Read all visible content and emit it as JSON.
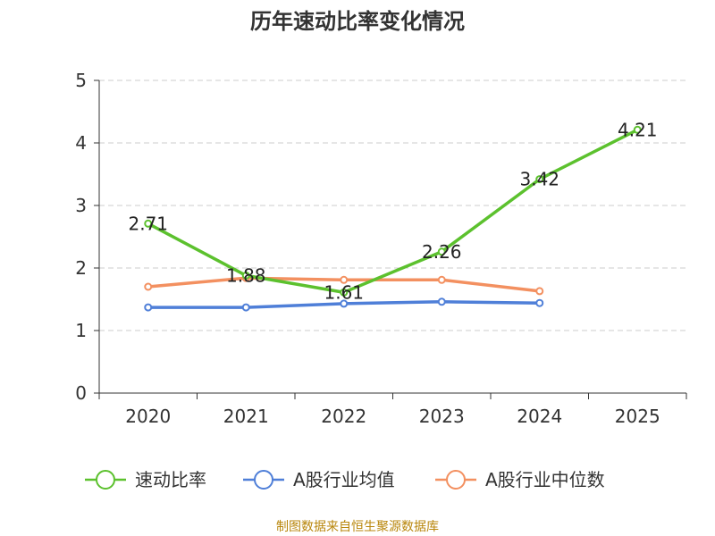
{
  "chart_data": {
    "type": "line",
    "title": "历年速动比率变化情况",
    "categories": [
      "2020",
      "2021",
      "2022",
      "2023",
      "2024",
      "2025"
    ],
    "ylim": [
      0,
      5
    ],
    "yticks": [
      "0",
      "1",
      "2",
      "3",
      "4",
      "5"
    ],
    "grid": true,
    "legend_position": "bottom",
    "series": [
      {
        "name": "速动比率",
        "color": "#5cc12e",
        "values": [
          2.71,
          1.88,
          1.61,
          2.26,
          3.42,
          4.21
        ],
        "labels": [
          "2.71",
          "1.88",
          "1.61",
          "2.26",
          "3.42",
          "4.21"
        ]
      },
      {
        "name": "A股行业均值",
        "color": "#4f7fd8",
        "values": [
          1.37,
          1.37,
          1.43,
          1.46,
          1.44,
          null
        ]
      },
      {
        "name": "A股行业中位数",
        "color": "#f39060",
        "values": [
          1.7,
          1.84,
          1.81,
          1.81,
          1.63,
          null
        ]
      }
    ],
    "source": "制图数据来自恒生聚源数据库"
  }
}
